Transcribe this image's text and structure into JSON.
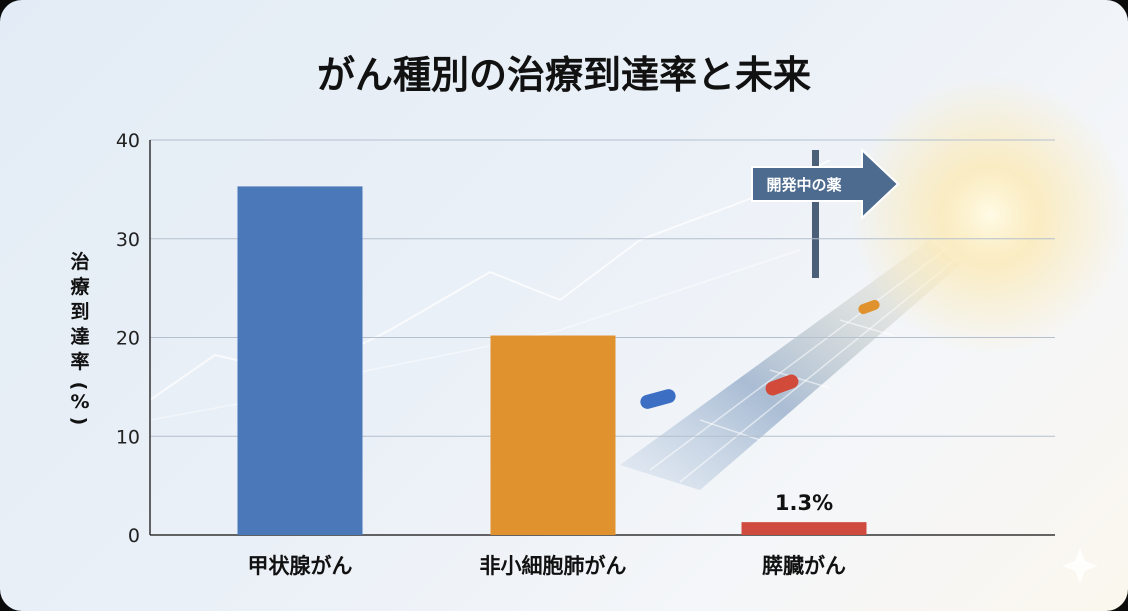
{
  "chart_data": {
    "type": "bar",
    "title": "がん種別の治療到達率と未来",
    "ylabel": "治療到達率(%)",
    "xlabel": "",
    "ylim": [
      0,
      40
    ],
    "yticks": [
      "0",
      "10",
      "20",
      "30",
      "40"
    ],
    "grid": true,
    "categories": [
      "甲状腺がん",
      "非小細胞肺がん",
      "膵臓がん"
    ],
    "values": [
      35.3,
      20.2,
      1.3
    ],
    "colors": [
      "#4a78b9",
      "#e0922f",
      "#cf4a3f"
    ],
    "data_labels": [
      "",
      "",
      "1.3%"
    ],
    "annotations": [
      {
        "text": "開発中の薬",
        "icon": "signpost-arrow-icon"
      }
    ]
  }
}
